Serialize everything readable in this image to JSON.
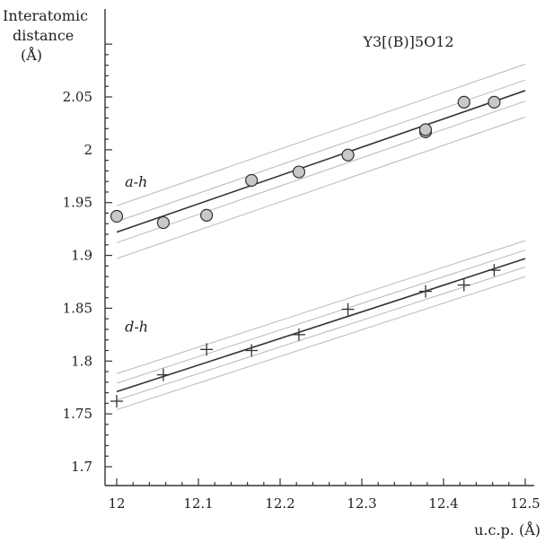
{
  "chart_data": {
    "type": "scatter",
    "title": "Y3[(B)]5O12",
    "ylabel_lines": [
      "Interatomic",
      "distance",
      "(Å)"
    ],
    "xlabel": "u.c.p. (Å)",
    "xlim": [
      12,
      12.5
    ],
    "ylim": [
      1.7,
      2.1
    ],
    "x_ticks": [
      12,
      12.1,
      12.2,
      12.3,
      12.4,
      12.5
    ],
    "x_tick_labels": [
      "12",
      "12.1",
      "12.2",
      "12.3",
      "12.4",
      "12.5"
    ],
    "y_ticks": [
      1.7,
      1.75,
      1.8,
      1.85,
      1.9,
      1.95,
      2,
      2.05
    ],
    "y_tick_labels": [
      "1.7",
      "1.75",
      "1.8",
      "1.85",
      "1.9",
      "1.95",
      "2",
      "2.05"
    ],
    "grid": false,
    "series": [
      {
        "name": "a-h",
        "marker": "circle",
        "label_anchor": [
          12.01,
          1.965
        ],
        "x": [
          12.0,
          12.057,
          12.11,
          12.165,
          12.223,
          12.283,
          12.378,
          12.378,
          12.425,
          12.462
        ],
        "y": [
          1.937,
          1.931,
          1.938,
          1.971,
          1.979,
          1.995,
          2.017,
          2.019,
          2.045,
          2.045
        ],
        "fit": {
          "x": [
            12.0,
            12.5
          ],
          "y": [
            1.922,
            2.056
          ]
        },
        "bands": [
          {
            "x": [
              12.0,
              12.5
            ],
            "y": [
              1.897,
              2.031
            ]
          },
          {
            "x": [
              12.0,
              12.5
            ],
            "y": [
              1.912,
              2.046
            ]
          },
          {
            "x": [
              12.0,
              12.5
            ],
            "y": [
              1.932,
              2.066
            ]
          },
          {
            "x": [
              12.0,
              12.5
            ],
            "y": [
              1.947,
              2.081
            ]
          }
        ]
      },
      {
        "name": "d-h",
        "marker": "cross",
        "label_anchor": [
          12.01,
          1.828
        ],
        "x": [
          12.0,
          12.057,
          12.11,
          12.165,
          12.223,
          12.283,
          12.378,
          12.425,
          12.462
        ],
        "y": [
          1.762,
          1.787,
          1.811,
          1.81,
          1.825,
          1.849,
          1.866,
          1.872,
          1.886
        ],
        "fit": {
          "x": [
            12.0,
            12.5
          ],
          "y": [
            1.771,
            1.897
          ]
        },
        "bands": [
          {
            "x": [
              12.0,
              12.5
            ],
            "y": [
              1.754,
              1.88
            ]
          },
          {
            "x": [
              12.0,
              12.5
            ],
            "y": [
              1.763,
              1.889
            ]
          },
          {
            "x": [
              12.0,
              12.5
            ],
            "y": [
              1.779,
              1.905
            ]
          },
          {
            "x": [
              12.0,
              12.5
            ],
            "y": [
              1.788,
              1.914
            ]
          }
        ]
      }
    ]
  }
}
